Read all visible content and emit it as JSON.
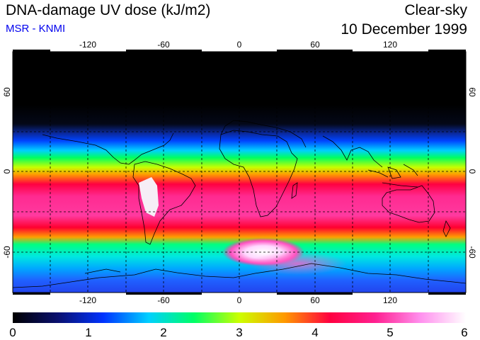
{
  "header": {
    "title": "DNA-damage UV dose (kJ/m2)",
    "source": "MSR - KNMI",
    "condition": "Clear-sky",
    "date": "10 December 1999"
  },
  "map": {
    "lon_ticks": [
      "-120",
      "-60",
      "0",
      "60",
      "120"
    ],
    "lat_ticks": [
      "60",
      "0",
      "-60"
    ]
  },
  "colorbar": {
    "labels": [
      "0",
      "1",
      "2",
      "3",
      "4",
      "5",
      "6"
    ],
    "min": 0,
    "max": 6,
    "stops": [
      "#000000",
      "#0a1070",
      "#0033ff",
      "#00d0ff",
      "#00ff66",
      "#ccff00",
      "#ff9900",
      "#ff0040",
      "#ff2090",
      "#ff90ee",
      "#ffffff"
    ]
  },
  "colors": {
    "title": "#000000",
    "source": "#0000ee",
    "coast": "#000000",
    "grid": "#000000"
  }
}
